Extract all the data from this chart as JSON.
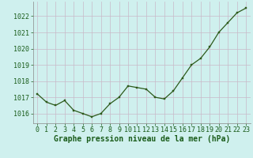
{
  "x": [
    0,
    1,
    2,
    3,
    4,
    5,
    6,
    7,
    8,
    9,
    10,
    11,
    12,
    13,
    14,
    15,
    16,
    17,
    18,
    19,
    20,
    21,
    22,
    23
  ],
  "y": [
    1017.2,
    1016.7,
    1016.5,
    1016.8,
    1016.2,
    1016.0,
    1015.8,
    1016.0,
    1016.6,
    1017.0,
    1017.7,
    1017.6,
    1017.5,
    1017.0,
    1016.9,
    1017.4,
    1018.2,
    1019.0,
    1019.4,
    1020.1,
    1021.0,
    1021.6,
    1022.2,
    1022.5
  ],
  "line_color": "#2d5a1b",
  "marker_color": "#2d5a1b",
  "bg_color": "#cff0ee",
  "grid_color": "#c8b8c8",
  "xlabel": "Graphe pression niveau de la mer (hPa)",
  "xlabel_color": "#1a5c1a",
  "ylabel_ticks": [
    1016,
    1017,
    1018,
    1019,
    1020,
    1021,
    1022
  ],
  "ylim": [
    1015.4,
    1022.9
  ],
  "xlim": [
    -0.5,
    23.5
  ],
  "tick_color": "#1a5c1a",
  "xlabel_fontsize": 7.0,
  "tick_fontsize": 6.0,
  "spine_color": "#888888"
}
